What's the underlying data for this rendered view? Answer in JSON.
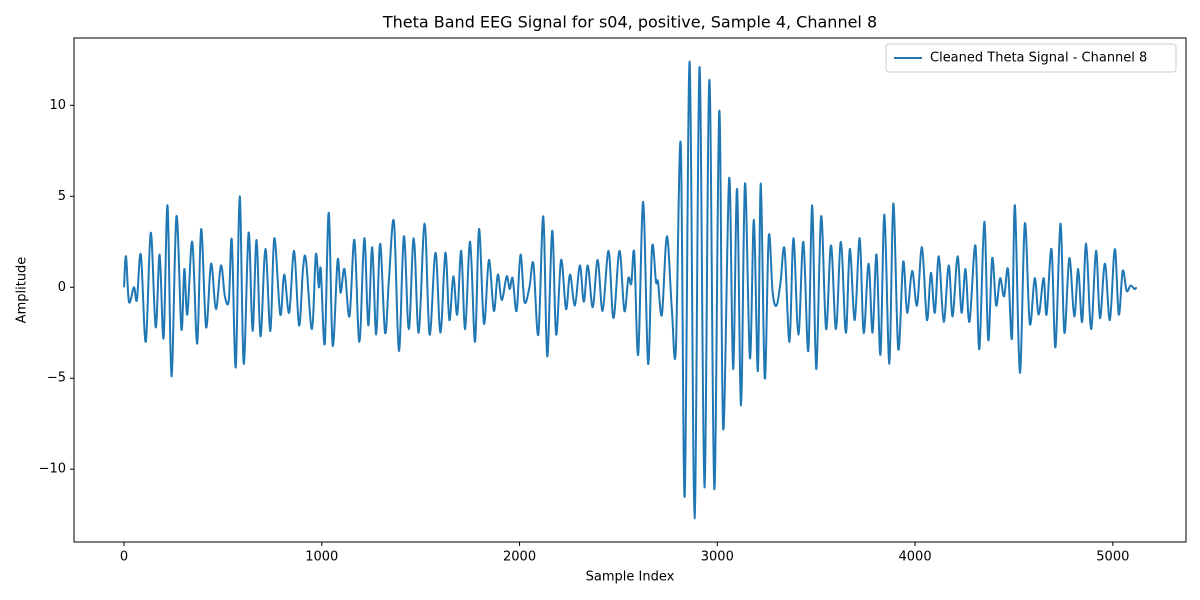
{
  "chart_data": {
    "type": "line",
    "title": "Theta Band EEG Signal for s04, positive, Sample 4, Channel 8",
    "x_label": "Sample Index",
    "y_label": "Amplitude",
    "x": [
      0,
      10,
      25,
      50,
      65,
      85,
      110,
      135,
      160,
      180,
      200,
      220,
      240,
      265,
      290,
      305,
      320,
      345,
      370,
      390,
      415,
      440,
      465,
      490,
      510,
      530,
      545,
      565,
      585,
      605,
      630,
      650,
      670,
      690,
      715,
      740,
      760,
      790,
      810,
      835,
      860,
      885,
      905,
      920,
      950,
      970,
      985,
      995,
      1015,
      1035,
      1055,
      1080,
      1095,
      1115,
      1140,
      1165,
      1190,
      1215,
      1235,
      1255,
      1275,
      1295,
      1320,
      1340,
      1365,
      1390,
      1415,
      1440,
      1465,
      1490,
      1520,
      1545,
      1575,
      1600,
      1625,
      1645,
      1665,
      1685,
      1705,
      1725,
      1750,
      1775,
      1795,
      1820,
      1845,
      1870,
      1890,
      1910,
      1935,
      1950,
      1965,
      1985,
      2005,
      2025,
      2050,
      2070,
      2095,
      2120,
      2140,
      2165,
      2185,
      2210,
      2235,
      2255,
      2280,
      2305,
      2325,
      2345,
      2370,
      2395,
      2420,
      2450,
      2475,
      2505,
      2530,
      2550,
      2565,
      2580,
      2600,
      2625,
      2650,
      2670,
      2690,
      2700,
      2720,
      2745,
      2770,
      2790,
      2815,
      2835,
      2860,
      2885,
      2910,
      2935,
      2960,
      2985,
      3010,
      3030,
      3060,
      3080,
      3100,
      3120,
      3140,
      3165,
      3185,
      3205,
      3220,
      3240,
      3260,
      3280,
      3300,
      3320,
      3340,
      3365,
      3385,
      3410,
      3435,
      3460,
      3480,
      3500,
      3525,
      3550,
      3575,
      3600,
      3625,
      3650,
      3670,
      3695,
      3720,
      3740,
      3765,
      3785,
      3805,
      3825,
      3845,
      3870,
      3890,
      3915,
      3940,
      3960,
      3985,
      4010,
      4035,
      4060,
      4080,
      4100,
      4120,
      4145,
      4170,
      4190,
      4215,
      4235,
      4255,
      4275,
      4305,
      4325,
      4350,
      4370,
      4390,
      4410,
      4430,
      4450,
      4470,
      4490,
      4505,
      4530,
      4555,
      4580,
      4605,
      4625,
      4650,
      4665,
      4690,
      4710,
      4735,
      4755,
      4780,
      4805,
      4825,
      4845,
      4865,
      4890,
      4915,
      4935,
      4960,
      4985,
      5010,
      5030,
      5050,
      5070,
      5090,
      5110,
      5120
    ],
    "series": [
      {
        "name": "Cleaned Theta Signal - Channel 8",
        "color": "#1f77b4",
        "values": [
          0,
          1.7,
          -0.8,
          0,
          -0.7,
          1.8,
          -3.0,
          3.0,
          -2.2,
          1.8,
          -2.8,
          4.5,
          -4.9,
          3.9,
          -2.3,
          1.0,
          -1.5,
          2.5,
          -3.1,
          3.2,
          -2.2,
          1.3,
          -1.2,
          1.2,
          -0.5,
          -0.7,
          2.6,
          -4.4,
          5.0,
          -4.2,
          3.0,
          -2.4,
          2.6,
          -2.7,
          2.1,
          -2.4,
          2.7,
          -1.5,
          0.7,
          -1.4,
          2.0,
          -2.1,
          1.0,
          1.5,
          -2.3,
          1.8,
          0,
          1.0,
          -3.1,
          4.1,
          -3.2,
          1.5,
          -0.3,
          1.0,
          -1.6,
          2.6,
          -3.0,
          2.7,
          -2.1,
          2.2,
          -2.6,
          2.4,
          -2.5,
          0.5,
          3.6,
          -3.5,
          2.8,
          -2.3,
          2.7,
          -2.5,
          3.5,
          -2.6,
          1.9,
          -2.5,
          1.9,
          -1.8,
          0.6,
          -1.5,
          2.0,
          -2.3,
          2.5,
          -3.0,
          3.2,
          -2.0,
          1.5,
          -1.3,
          0.7,
          -0.7,
          0.6,
          -0.1,
          0.5,
          -1.3,
          1.8,
          -0.8,
          0,
          1.3,
          -2.6,
          3.9,
          -3.8,
          3.1,
          -2.6,
          1.5,
          -1.2,
          0.7,
          -1.0,
          1.2,
          -0.8,
          1.2,
          -1.1,
          1.5,
          -1.3,
          2.0,
          -1.7,
          2.0,
          -1.3,
          0.5,
          0.2,
          1.9,
          -3.7,
          4.7,
          -4.2,
          2.2,
          0.3,
          0.3,
          -1.5,
          2.8,
          -1.2,
          -3.5,
          7.9,
          -11.5,
          12.4,
          -12.7,
          12.1,
          -11.0,
          11.4,
          -11.1,
          9.7,
          -7.8,
          6.0,
          -4.5,
          5.4,
          -6.5,
          5.7,
          -3.9,
          3.7,
          -4.6,
          5.7,
          -5.0,
          2.8,
          -0.3,
          -1.0,
          0.3,
          2.1,
          -3.0,
          2.7,
          -2.6,
          2.5,
          -3.5,
          4.5,
          -4.5,
          3.9,
          -2.3,
          2.3,
          -2.3,
          2.5,
          -2.5,
          2.1,
          -1.8,
          2.7,
          -2.5,
          1.3,
          -2.5,
          1.8,
          -3.7,
          4.0,
          -4.2,
          4.6,
          -3.4,
          1.4,
          -1.4,
          0.9,
          -1.0,
          2.2,
          -1.8,
          0.8,
          -1.4,
          1.7,
          -1.9,
          1.2,
          -1.6,
          1.7,
          -1.4,
          1.0,
          -1.9,
          2.3,
          -3.4,
          3.6,
          -2.9,
          1.6,
          -1.0,
          0.5,
          -0.5,
          1.0,
          -2.8,
          4.5,
          -4.7,
          3.5,
          -2.0,
          0.5,
          -1.5,
          0.5,
          -1.5,
          2.1,
          -3.3,
          3.5,
          -2.5,
          1.6,
          -1.6,
          1.0,
          -1.9,
          2.4,
          -2.3,
          2.0,
          -1.7,
          1.3,
          -1.8,
          2.1,
          -1.5,
          0.9,
          -0.2,
          0.1,
          -0.1,
          0
        ]
      }
    ],
    "xlim": [
      -253,
      5370
    ],
    "ylim": [
      -14.0,
      13.7
    ],
    "xticks": [
      0,
      1000,
      2000,
      3000,
      4000,
      5000
    ],
    "yticks": [
      {
        "value": -10,
        "label": "−10"
      },
      {
        "value": -5,
        "label": "−5"
      },
      0,
      5,
      10
    ],
    "grid": false,
    "legend": "upper right"
  }
}
